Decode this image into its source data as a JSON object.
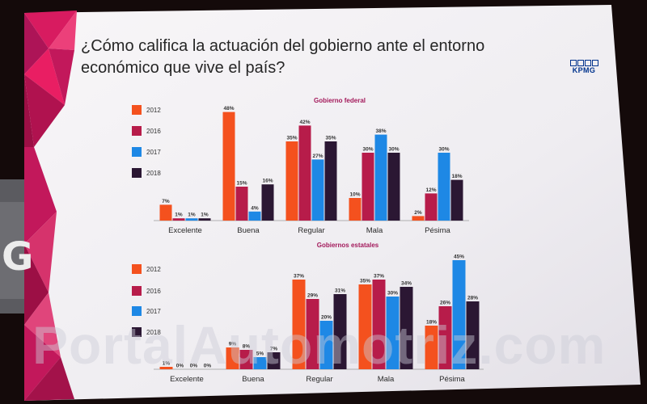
{
  "slide": {
    "title_line1": "¿Cómo califica la actuación del gobierno ante el entorno",
    "title_line2": "económico que vive el país?",
    "logo_text": "KPMG",
    "logo_color": "#00338d",
    "accent_color": "#c2185b"
  },
  "left_banner_text": "G",
  "watermark": "PortalAutomotriz.com",
  "chart_data": [
    {
      "type": "bar",
      "title": "Gobierno federal",
      "title_color": "#a3195b",
      "categories": [
        "Excelente",
        "Buena",
        "Regular",
        "Mala",
        "Pésima"
      ],
      "series": [
        {
          "name": "2012",
          "color": "#f4511e",
          "values": [
            7,
            48,
            35,
            10,
            2
          ]
        },
        {
          "name": "2016",
          "color": "#b71c4a",
          "values": [
            1,
            15,
            42,
            30,
            12
          ]
        },
        {
          "name": "2017",
          "color": "#1e88e5",
          "values": [
            1,
            4,
            27,
            38,
            30
          ]
        },
        {
          "name": "2018",
          "color": "#2b1733",
          "values": [
            1,
            16,
            35,
            30,
            18
          ]
        }
      ],
      "unit": "%",
      "ylim": [
        0,
        50
      ],
      "grid": false,
      "legend": "left"
    },
    {
      "type": "bar",
      "title": "Gobiernos estatales",
      "title_color": "#a3195b",
      "categories": [
        "Excelente",
        "Buena",
        "Regular",
        "Mala",
        "Pésima"
      ],
      "series": [
        {
          "name": "2012",
          "color": "#f4511e",
          "values": [
            1,
            9,
            37,
            35,
            18
          ]
        },
        {
          "name": "2016",
          "color": "#b71c4a",
          "values": [
            0,
            8,
            29,
            37,
            26
          ]
        },
        {
          "name": "2017",
          "color": "#1e88e5",
          "values": [
            0,
            5,
            20,
            30,
            45
          ]
        },
        {
          "name": "2018",
          "color": "#2b1733",
          "values": [
            0,
            7,
            31,
            34,
            28
          ]
        }
      ],
      "unit": "%",
      "ylim": [
        0,
        50
      ],
      "grid": false,
      "legend": "left"
    }
  ]
}
